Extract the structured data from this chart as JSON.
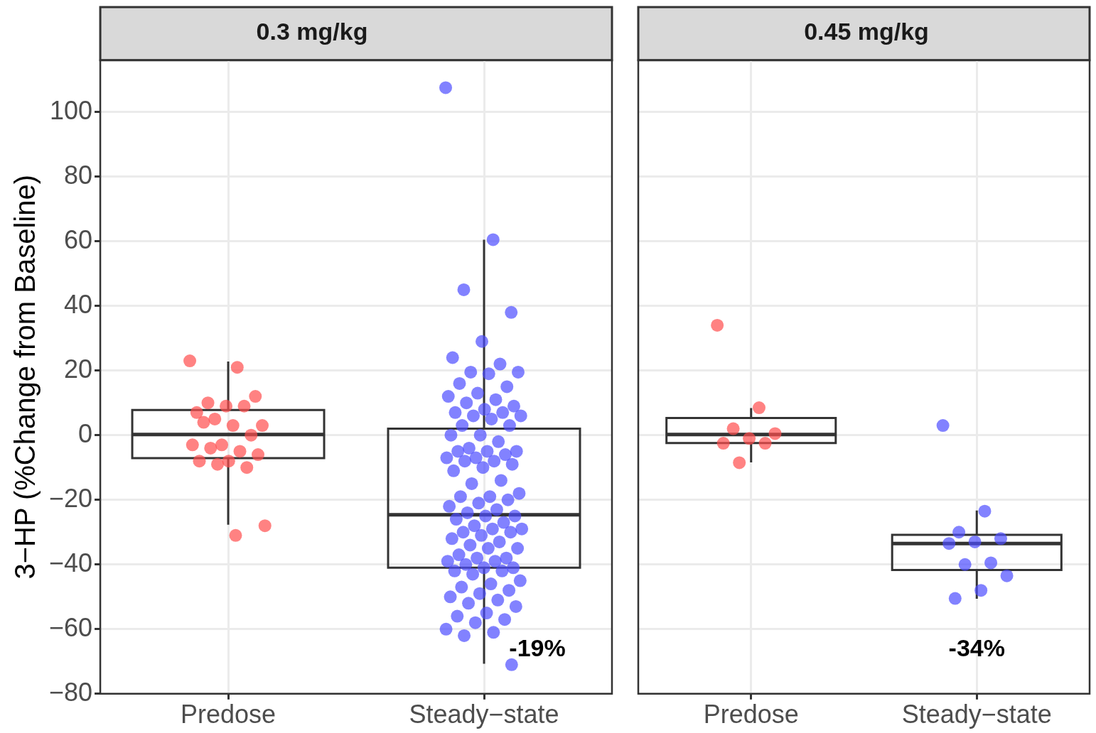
{
  "chart_data": [
    {
      "type": "box",
      "title": "0.3 mg/kg",
      "ylabel": "3−HP (%Change from Baseline)",
      "categories": [
        "Predose",
        "Steady−state"
      ],
      "ylim": [
        -80,
        116
      ],
      "yticks": [
        {
          "value": -80,
          "label": "−80"
        },
        {
          "value": -60,
          "label": "−60"
        },
        {
          "value": -40,
          "label": "−40"
        },
        {
          "value": -20,
          "label": "−20"
        },
        0,
        20,
        40,
        60,
        80,
        100
      ],
      "grid": true,
      "legend": false,
      "marker": "circle",
      "series": [
        {
          "type": "box",
          "color": "#333333",
          "boxes": [
            {
              "low": -27.7,
              "q1": -7.1,
              "median": 0.2,
              "q3": 7.8,
              "high": 22.8
            },
            {
              "low": -70.7,
              "q1": -41,
              "median": -24.6,
              "q3": 2,
              "high": 60.5
            }
          ]
        },
        {
          "type": "scatter",
          "color": "#ff4d4d",
          "x": [
            "Predose",
            "Predose",
            "Predose",
            "Predose",
            "Predose",
            "Predose",
            "Predose",
            "Predose",
            "Predose",
            "Predose",
            "Predose",
            "Predose",
            "Predose",
            "Predose",
            "Predose",
            "Predose",
            "Predose",
            "Predose",
            "Predose",
            "Predose",
            "Predose",
            "Predose",
            "Predose"
          ],
          "values": [
            23,
            21,
            10,
            12,
            9,
            7,
            9,
            5,
            3,
            3,
            4,
            0,
            -3,
            -3,
            -5,
            -4,
            -6,
            -8,
            -8,
            -10,
            -9,
            -28,
            -31
          ]
        },
        {
          "type": "scatter",
          "color": "#4d4dff",
          "x": [
            "Steady−state",
            "Steady−state",
            "Steady−state",
            "Steady−state",
            "Steady−state",
            "Steady−state",
            "Steady−state",
            "Steady−state",
            "Steady−state",
            "Steady−state",
            "Steady−state",
            "Steady−state",
            "Steady−state",
            "Steady−state",
            "Steady−state",
            "Steady−state",
            "Steady−state",
            "Steady−state",
            "Steady−state",
            "Steady−state",
            "Steady−state",
            "Steady−state",
            "Steady−state",
            "Steady−state",
            "Steady−state",
            "Steady−state",
            "Steady−state",
            "Steady−state",
            "Steady−state",
            "Steady−state",
            "Steady−state",
            "Steady−state",
            "Steady−state",
            "Steady−state",
            "Steady−state",
            "Steady−state",
            "Steady−state",
            "Steady−state",
            "Steady−state",
            "Steady−state",
            "Steady−state",
            "Steady−state",
            "Steady−state",
            "Steady−state",
            "Steady−state",
            "Steady−state",
            "Steady−state",
            "Steady−state",
            "Steady−state",
            "Steady−state",
            "Steady−state",
            "Steady−state",
            "Steady−state",
            "Steady−state",
            "Steady−state",
            "Steady−state",
            "Steady−state",
            "Steady−state",
            "Steady−state",
            "Steady−state",
            "Steady−state",
            "Steady−state",
            "Steady−state",
            "Steady−state",
            "Steady−state",
            "Steady−state",
            "Steady−state",
            "Steady−state",
            "Steady−state",
            "Steady−state",
            "Steady−state",
            "Steady−state",
            "Steady−state",
            "Steady−state",
            "Steady−state",
            "Steady−state",
            "Steady−state",
            "Steady−state",
            "Steady−state",
            "Steady−state",
            "Steady−state",
            "Steady−state",
            "Steady−state",
            "Steady−state",
            "Steady−state",
            "Steady−state",
            "Steady−state",
            "Steady−state",
            "Steady−state",
            "Steady−state",
            "Steady−state",
            "Steady−state",
            "Steady−state"
          ],
          "values": [
            107.5,
            60.5,
            45,
            38,
            29,
            24,
            22,
            19.5,
            19.5,
            19,
            16,
            15,
            13,
            12,
            11,
            10,
            9,
            8,
            7,
            7,
            6,
            6,
            5,
            3,
            3,
            0,
            0,
            -2,
            -4,
            -5,
            -5,
            -5,
            -6,
            -7,
            -7,
            -8,
            -8,
            -9,
            -10,
            -11,
            -14,
            -15,
            -18,
            -19,
            -19,
            -20,
            -21,
            -22,
            -23,
            -24,
            -25,
            -25,
            -26,
            -27,
            -28,
            -29,
            -29,
            -30,
            -30,
            -31,
            -32,
            -33,
            -34,
            -35,
            -35,
            -37,
            -38,
            -38,
            -39,
            -39,
            -40,
            -41,
            -41,
            -42,
            -42,
            -43,
            -45,
            -46,
            -47,
            -48,
            -49,
            -50,
            -51,
            -52,
            -53,
            -55,
            -56,
            -57,
            -58,
            -60,
            -61,
            -62,
            -71
          ]
        }
      ],
      "annotations": [
        "-19%"
      ]
    },
    {
      "type": "box",
      "title": "0.45 mg/kg",
      "categories": [
        "Predose",
        "Steady−state"
      ],
      "ylim": [
        -80,
        116
      ],
      "yticks": [
        -80,
        -60,
        -40,
        -20,
        0,
        20,
        40,
        60,
        80,
        100
      ],
      "grid": true,
      "legend": false,
      "marker": "circle",
      "tick_labels": "x",
      "series": [
        {
          "type": "box",
          "color": "#333333",
          "boxes": [
            {
              "low": -8.4,
              "q1": -2.4,
              "median": 0.2,
              "q3": 5.3,
              "high": 8.4
            },
            {
              "low": -50.6,
              "q1": -41.7,
              "median": -33.5,
              "q3": -30.8,
              "high": -23.3
            }
          ]
        },
        {
          "type": "scatter",
          "color": "#ff4d4d",
          "x": [
            "Predose",
            "Predose",
            "Predose",
            "Predose",
            "Predose",
            "Predose",
            "Predose",
            "Predose"
          ],
          "values": [
            34,
            8.5,
            2,
            0.5,
            -1,
            -2.5,
            -2.5,
            -8.5
          ]
        },
        {
          "type": "scatter",
          "color": "#4d4dff",
          "x": [
            "Steady−state",
            "Steady−state",
            "Steady−state",
            "Steady−state",
            "Steady−state",
            "Steady−state",
            "Steady−state",
            "Steady−state",
            "Steady−state",
            "Steady−state",
            "Steady−state"
          ],
          "values": [
            3,
            -23.5,
            -30,
            -32,
            -33,
            -33.5,
            -39.5,
            -40,
            -43.5,
            -48,
            -50.5
          ]
        }
      ],
      "annotations": [
        "-34%"
      ]
    }
  ]
}
